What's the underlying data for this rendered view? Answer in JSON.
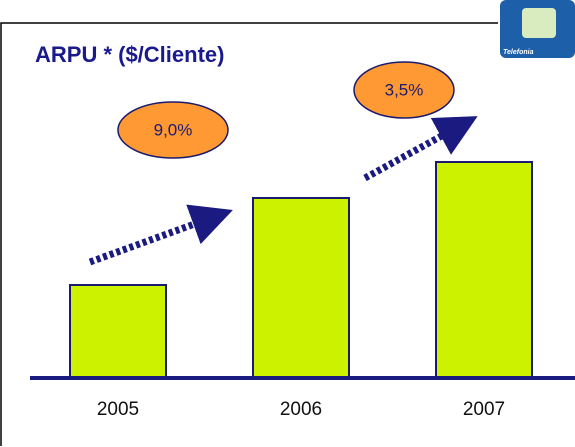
{
  "chart_data": {
    "type": "bar",
    "title": "ARPU * ($/Cliente)",
    "categories": [
      "2005",
      "2006",
      "2007"
    ],
    "values": [
      93,
      180,
      216
    ],
    "color": "#ccf200",
    "ylim": [
      0,
      300
    ],
    "annotations": [
      "9,0%",
      "3,5%"
    ],
    "logo": "Telefonia"
  }
}
